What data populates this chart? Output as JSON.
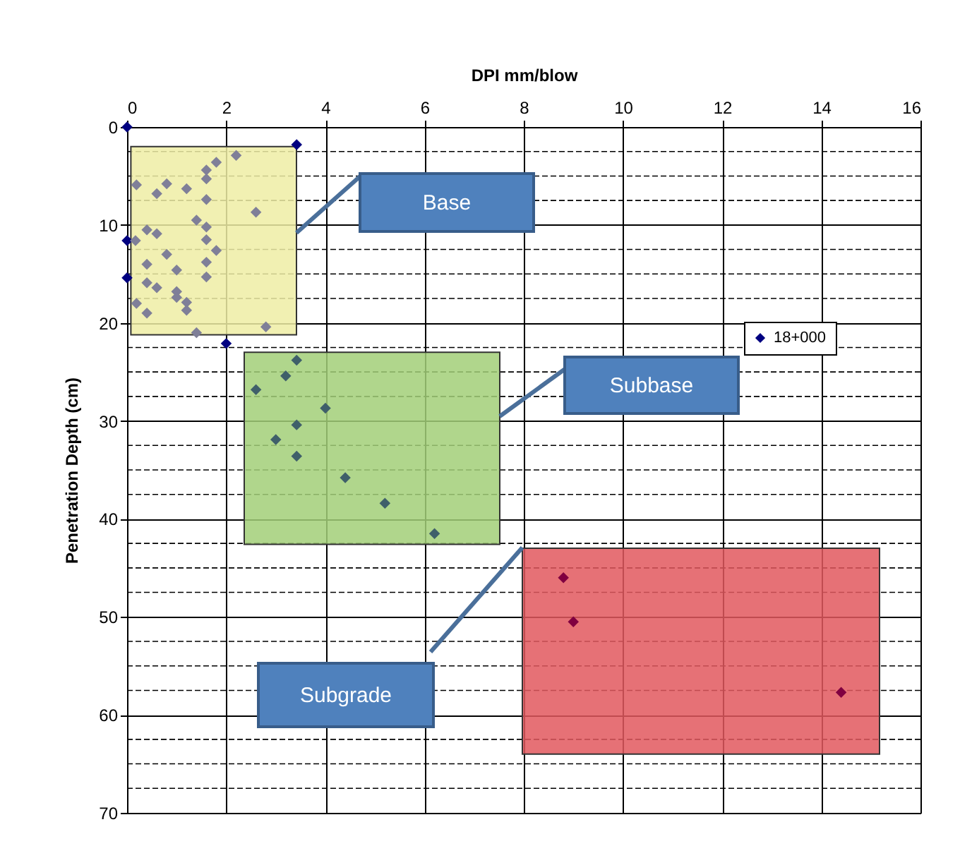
{
  "chart_data": {
    "type": "scatter",
    "xlabel": "DPI mm/blow",
    "ylabel": "Penetration Depth (cm)",
    "xlim": [
      0,
      16
    ],
    "xticks": [
      0,
      2,
      4,
      6,
      8,
      10,
      12,
      14,
      16
    ],
    "ylim": [
      70,
      0
    ],
    "yticks": [
      0,
      10,
      20,
      30,
      40,
      50,
      60,
      70
    ],
    "grid": true,
    "marker": "diamond",
    "legend": "right",
    "series": [
      {
        "name": "18+000",
        "color": "#000080",
        "x": [
          0,
          3.42,
          0,
          0,
          2.0
        ],
        "values": [
          0,
          1.8,
          11.6,
          15.4,
          22.1
        ]
      },
      {
        "color": "#7f7f98",
        "x": [
          2.2,
          1.8,
          1.6,
          1.6,
          0.19,
          0.8,
          1.2,
          0.6,
          1.6,
          2.6,
          1.4,
          1.6,
          0.4,
          0.6,
          0.17,
          1.6,
          1.8,
          0.8,
          0.4,
          1.6,
          1.0,
          1.6,
          0.4,
          0.6,
          1.0,
          1.0,
          1.2,
          0.19,
          1.2,
          0.4,
          2.8,
          1.4
        ],
        "values": [
          2.9,
          3.6,
          4.4,
          5.3,
          5.9,
          5.8,
          6.3,
          6.8,
          7.4,
          8.7,
          9.5,
          10.2,
          10.5,
          10.9,
          11.6,
          11.5,
          12.6,
          13.0,
          14.0,
          13.8,
          14.6,
          15.3,
          15.9,
          16.4,
          16.8,
          17.4,
          17.9,
          18.0,
          18.7,
          19.0,
          20.4,
          21.0
        ]
      },
      {
        "color": "#3f5f6a",
        "x": [
          3.42,
          3.2,
          2.6,
          4.0,
          3.42,
          3.0,
          3.42,
          4.4,
          5.2,
          6.2
        ],
        "values": [
          23.8,
          25.4,
          26.8,
          28.7,
          30.4,
          31.9,
          33.6,
          35.8,
          38.4,
          41.5
        ]
      },
      {
        "color": "#800040",
        "x": [
          8.8,
          9.0,
          14.4
        ],
        "values": [
          46.0,
          50.5,
          57.7
        ]
      }
    ],
    "bands": [
      {
        "axis": "y",
        "from": 2.0,
        "to": 21.2,
        "color": "#eeeda4"
      },
      {
        "axis": "y",
        "from": 23.0,
        "to": 42.6,
        "color": "#a2cf78"
      },
      {
        "axis": "y",
        "from": 43.0,
        "to": 64.0,
        "color": "#e2585e"
      }
    ],
    "annotations": [
      "Base",
      "Subbase",
      "Subgrade"
    ]
  }
}
